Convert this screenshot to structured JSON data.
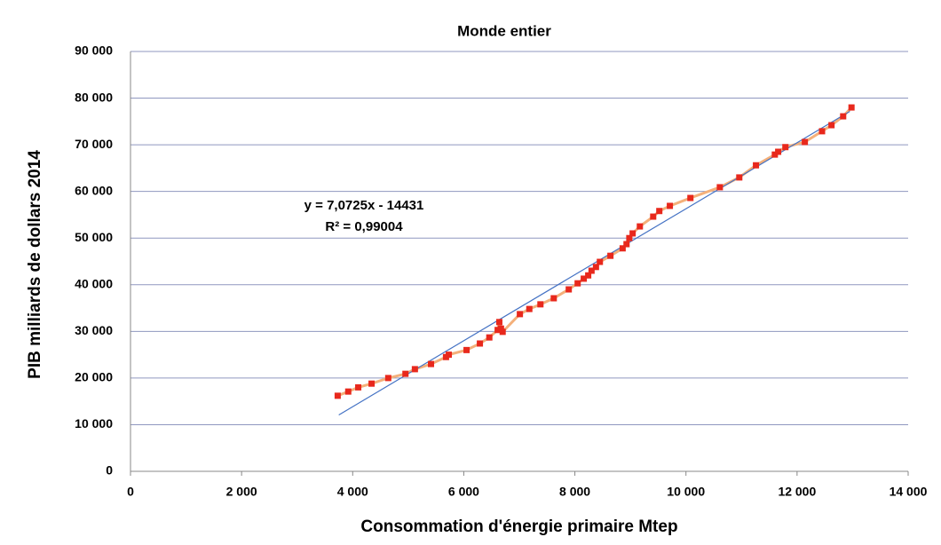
{
  "chart_data": {
    "type": "scatter",
    "title": "Monde entier",
    "x_label": "Consommation d'énergie primaire Mtep",
    "y_label": "PIB milliards de dollars 2014",
    "annotation": [
      "y = 7,0725x - 14431",
      "R² = 0,99004"
    ],
    "xlim": [
      0,
      14000
    ],
    "ylim": [
      0,
      90000
    ],
    "xticks": [
      0,
      {
        "value": 2000,
        "label": "2 000"
      },
      {
        "value": 4000,
        "label": "4 000"
      },
      {
        "value": 6000,
        "label": "6 000"
      },
      {
        "value": 8000,
        "label": "8 000"
      },
      {
        "value": 10000,
        "label": "10 000"
      },
      {
        "value": 12000,
        "label": "12 000"
      },
      {
        "value": 14000,
        "label": "14 000"
      }
    ],
    "yticks": [
      0,
      {
        "value": 10000,
        "label": "10 000"
      },
      {
        "value": 20000,
        "label": "20 000"
      },
      {
        "value": 30000,
        "label": "30 000"
      },
      {
        "value": 40000,
        "label": "40 000"
      },
      {
        "value": 50000,
        "label": "50 000"
      },
      {
        "value": 60000,
        "label": "60 000"
      },
      {
        "value": 70000,
        "label": "70 000"
      },
      {
        "value": 80000,
        "label": "80 000"
      },
      {
        "value": 90000,
        "label": "90 000"
      }
    ],
    "grid": true,
    "marker_color": "#e8281c",
    "line_color": "#f4b07a",
    "x": [
      3730,
      3920,
      4100,
      4340,
      4640,
      4950,
      5120,
      5410,
      5680,
      5730,
      6050,
      6290,
      6460,
      6610,
      6640,
      6670,
      6700,
      7010,
      7180,
      7380,
      7620,
      7890,
      8050,
      8160,
      8240,
      8300,
      8380,
      8450,
      8640,
      8860,
      8930,
      8980,
      9040,
      9170,
      9410,
      9520,
      9710,
      10080,
      10610,
      10960,
      11260,
      11600,
      11660,
      11790,
      12140,
      12450,
      12620,
      12830,
      12980
    ],
    "values": [
      16200,
      17100,
      18000,
      18800,
      20000,
      20900,
      21900,
      23000,
      24500,
      25000,
      26000,
      27400,
      28700,
      30300,
      32000,
      30600,
      29900,
      33700,
      34800,
      35800,
      37100,
      39000,
      40300,
      41300,
      42000,
      43000,
      43800,
      44900,
      46200,
      47800,
      48700,
      50000,
      51000,
      52500,
      54600,
      55800,
      56900,
      58600,
      60900,
      63000,
      65600,
      67900,
      68500,
      69500,
      70600,
      72900,
      74200,
      76100,
      78000
    ],
    "trendline": {
      "color": "#4472c4",
      "x": [
        3750,
        12950
      ],
      "values": [
        12088,
        77158
      ]
    }
  }
}
